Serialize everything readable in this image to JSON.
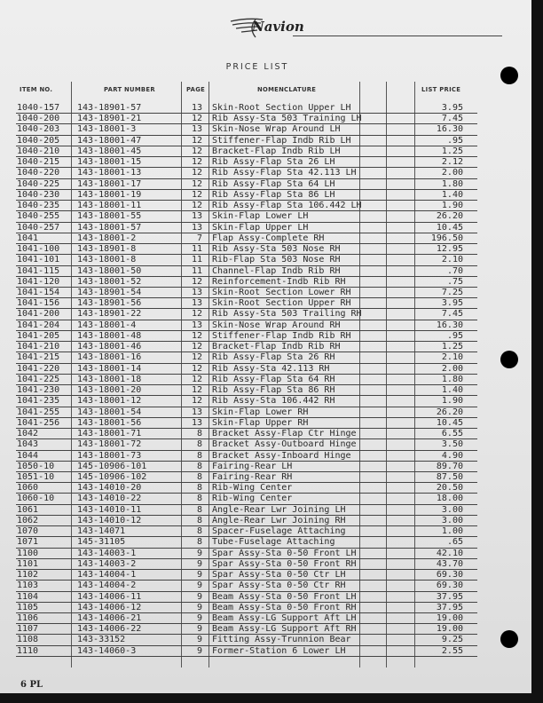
{
  "header": {
    "logo_text": "Navion",
    "title": "PRICE LIST",
    "columns": {
      "item_no": "ITEM NO.",
      "part_number": "PART NUMBER",
      "page": "PAGE",
      "nomenclature": "NOMENCLATURE",
      "list_price": "LIST PRICE"
    }
  },
  "rows": [
    {
      "item": "1040-157",
      "part": "143-18901-57",
      "page": "13",
      "nom": "Skin-Root Section Upper LH",
      "price": "3.95"
    },
    {
      "item": "1040-200",
      "part": "143-18901-21",
      "page": "12",
      "nom": "Rib Assy-Sta 503 Training LH",
      "price": "7.45"
    },
    {
      "item": "1040-203",
      "part": "143-18001-3",
      "page": "13",
      "nom": "Skin-Nose Wrap Around LH",
      "price": "16.30"
    },
    {
      "item": "1040-205",
      "part": "143-18001-47",
      "page": "12",
      "nom": "Stiffener-Flap Indb Rib LH",
      "price": ".95"
    },
    {
      "item": "1040-210",
      "part": "143-18001-45",
      "page": "12",
      "nom": "Bracket-Flap Indb Rib LH",
      "price": "1.25"
    },
    {
      "item": "1040-215",
      "part": "143-18001-15",
      "page": "12",
      "nom": "Rib Assy-Flap Sta 26 LH",
      "price": "2.12"
    },
    {
      "item": "1040-220",
      "part": "143-18001-13",
      "page": "12",
      "nom": "Rib Assy-Flap Sta 42.113 LH",
      "price": "2.00"
    },
    {
      "item": "1040-225",
      "part": "143-18001-17",
      "page": "12",
      "nom": "Rib Assy-Flap Sta 64 LH",
      "price": "1.80"
    },
    {
      "item": "1040-230",
      "part": "143-18001-19",
      "page": "12",
      "nom": "Rib Assy-Flap Sta 86 LH",
      "price": "1.40"
    },
    {
      "item": "1040-235",
      "part": "143-18001-11",
      "page": "12",
      "nom": "Rib Assy-Flap Sta 106.442 LH",
      "price": "1.90"
    },
    {
      "item": "1040-255",
      "part": "143-18001-55",
      "page": "13",
      "nom": "Skin-Flap Lower LH",
      "price": "26.20"
    },
    {
      "item": "1040-257",
      "part": "143-18001-57",
      "page": "13",
      "nom": "Skin-Flap Upper LH",
      "price": "10.45"
    },
    {
      "item": "1041",
      "part": "143-18001-2",
      "page": "7",
      "nom": "Flap Assy-Complete RH",
      "price": "196.50"
    },
    {
      "item": "1041-100",
      "part": "143-18901-8",
      "page": "11",
      "nom": "Rib Assy-Sta 503 Nose RH",
      "price": "12.95"
    },
    {
      "item": "1041-101",
      "part": "143-18001-8",
      "page": "11",
      "nom": "Rib-Flap Sta 503 Nose RH",
      "price": "2.10"
    },
    {
      "item": "1041-115",
      "part": "143-18001-50",
      "page": "11",
      "nom": "Channel-Flap Indb Rib RH",
      "price": ".70"
    },
    {
      "item": "1041-120",
      "part": "143-18001-52",
      "page": "12",
      "nom": "Reinforcement-Indb Rib RH",
      "price": ".75"
    },
    {
      "item": "1041-154",
      "part": "143-18901-54",
      "page": "13",
      "nom": "Skin-Root Section Lower RH",
      "price": "7.25"
    },
    {
      "item": "1041-156",
      "part": "143-18901-56",
      "page": "13",
      "nom": "Skin-Root Section Upper RH",
      "price": "3.95"
    },
    {
      "item": "1041-200",
      "part": "143-18901-22",
      "page": "12",
      "nom": "Rib Assy-Sta 503 Trailing RH",
      "price": "7.45"
    },
    {
      "item": "1041-204",
      "part": "143-18001-4",
      "page": "13",
      "nom": "Skin-Nose Wrap Around RH",
      "price": "16.30"
    },
    {
      "item": "1041-205",
      "part": "143-18001-48",
      "page": "12",
      "nom": "Stiffener-Flap Indb Rib RH",
      "price": ".95"
    },
    {
      "item": "1041-210",
      "part": "143-18001-46",
      "page": "12",
      "nom": "Bracket-Flap Indb Rib RH",
      "price": "1.25"
    },
    {
      "item": "1041-215",
      "part": "143-18001-16",
      "page": "12",
      "nom": "Rib Assy-Flap Sta 26 RH",
      "price": "2.10"
    },
    {
      "item": "1041-220",
      "part": "143-18001-14",
      "page": "12",
      "nom": "Rib Assy-Sta 42.113 RH",
      "price": "2.00"
    },
    {
      "item": "1041-225",
      "part": "143-18001-18",
      "page": "12",
      "nom": "Rib Assy-Flap Sta 64 RH",
      "price": "1.80"
    },
    {
      "item": "1041-230",
      "part": "143-18001-20",
      "page": "12",
      "nom": "Rib Assy-Flap Sta 86 RH",
      "price": "1.40"
    },
    {
      "item": "1041-235",
      "part": "143-18001-12",
      "page": "12",
      "nom": "Rib Assy-Sta 106.442 RH",
      "price": "1.90"
    },
    {
      "item": "1041-255",
      "part": "143-18001-54",
      "page": "13",
      "nom": "Skin-Flap Lower RH",
      "price": "26.20"
    },
    {
      "item": "1041-256",
      "part": "143-18001-56",
      "page": "13",
      "nom": "Skin-Flap Upper RH",
      "price": "10.45"
    },
    {
      "item": "1042",
      "part": "143-18001-71",
      "page": "8",
      "nom": "Bracket Assy-Flap Ctr Hinge",
      "price": "6.55"
    },
    {
      "item": "1043",
      "part": "143-18001-72",
      "page": "8",
      "nom": "Bracket Assy-Outboard Hinge",
      "price": "3.50"
    },
    {
      "item": "1044",
      "part": "143-18001-73",
      "page": "8",
      "nom": "Bracket Assy-Inboard Hinge",
      "price": "4.90"
    },
    {
      "item": "1050-10",
      "part": "145-10906-101",
      "page": "8",
      "nom": "Fairing-Rear LH",
      "price": "89.70"
    },
    {
      "item": "1051-10",
      "part": "145-10906-102",
      "page": "8",
      "nom": "Fairing-Rear RH",
      "price": "87.50"
    },
    {
      "item": "1060",
      "part": "143-14010-20",
      "page": "8",
      "nom": "Rib-Wing Center",
      "price": "20.50"
    },
    {
      "item": "1060-10",
      "part": "143-14010-22",
      "page": "8",
      "nom": "Rib-Wing Center",
      "price": "18.00"
    },
    {
      "item": "1061",
      "part": "143-14010-11",
      "page": "8",
      "nom": "Angle-Rear Lwr Joining LH",
      "price": "3.00"
    },
    {
      "item": "1062",
      "part": "143-14010-12",
      "page": "8",
      "nom": "Angle-Rear Lwr Joining RH",
      "price": "3.00"
    },
    {
      "item": "1070",
      "part": "143-14071",
      "page": "8",
      "nom": "Spacer-Fuselage Attaching",
      "price": "1.00"
    },
    {
      "item": "1071",
      "part": "145-31105",
      "page": "8",
      "nom": "Tube-Fuselage Attaching",
      "price": ".65"
    },
    {
      "item": "1100",
      "part": "143-14003-1",
      "page": "9",
      "nom": "Spar Assy-Sta 0-50 Front LH",
      "price": "42.10"
    },
    {
      "item": "1101",
      "part": "143-14003-2",
      "page": "9",
      "nom": "Spar Assy-Sta 0-50 Front RH",
      "price": "43.70"
    },
    {
      "item": "1102",
      "part": "143-14004-1",
      "page": "9",
      "nom": "Spar Assy-Sta 0-50 Ctr LH",
      "price": "69.30"
    },
    {
      "item": "1103",
      "part": "143-14004-2",
      "page": "9",
      "nom": "Spar Assy-Sta 0-50 Ctr RH",
      "price": "69.30"
    },
    {
      "item": "1104",
      "part": "143-14006-11",
      "page": "9",
      "nom": "Beam Assy-Sta 0-50 Front LH",
      "price": "37.95"
    },
    {
      "item": "1105",
      "part": "143-14006-12",
      "page": "9",
      "nom": "Beam Assy-Sta 0-50 Front RH",
      "price": "37.95"
    },
    {
      "item": "1106",
      "part": "143-14006-21",
      "page": "9",
      "nom": "Beam Assy-LG Support Aft LH",
      "price": "19.00"
    },
    {
      "item": "1107",
      "part": "143-14006-22",
      "page": "9",
      "nom": "Beam Assy-LG Support Aft RH",
      "price": "19.00"
    },
    {
      "item": "1108",
      "part": "143-33152",
      "page": "9",
      "nom": "Fitting Assy-Trunnion Bear",
      "price": "9.25"
    },
    {
      "item": "1110",
      "part": "143-14060-3",
      "page": "9",
      "nom": "Former-Station 6 Lower LH",
      "price": "2.55"
    }
  ],
  "footer": {
    "page_label": "6  PL"
  }
}
